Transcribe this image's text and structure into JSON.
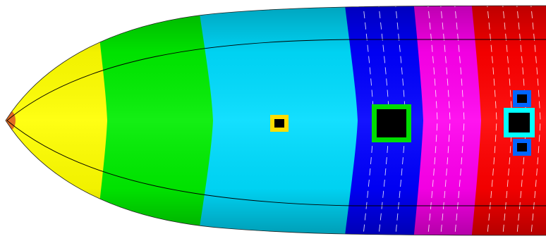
{
  "diagram": {
    "bands": [
      {
        "name": "nose-tip",
        "color": "#e06010"
      },
      {
        "name": "yellow",
        "color": "#ffff00"
      },
      {
        "name": "green",
        "color": "#00ee00"
      },
      {
        "name": "cyan",
        "color": "#00ddff"
      },
      {
        "name": "blue",
        "color": "#0000ff"
      },
      {
        "name": "magenta",
        "color": "#ff00ee"
      },
      {
        "name": "red",
        "color": "#ff0000"
      }
    ],
    "markers": [
      {
        "name": "small-square",
        "outline": "#ffdd00",
        "fill": "#000000"
      },
      {
        "name": "large-square",
        "outline": "#00dd00",
        "fill": "#000000"
      },
      {
        "name": "top-tiny-square",
        "outline": "#0066ff",
        "fill": "#000000"
      },
      {
        "name": "center-square",
        "outline": "#00ffff",
        "fill": "#000000"
      },
      {
        "name": "bottom-tiny-square",
        "outline": "#0066ff",
        "fill": "#000000"
      }
    ]
  }
}
